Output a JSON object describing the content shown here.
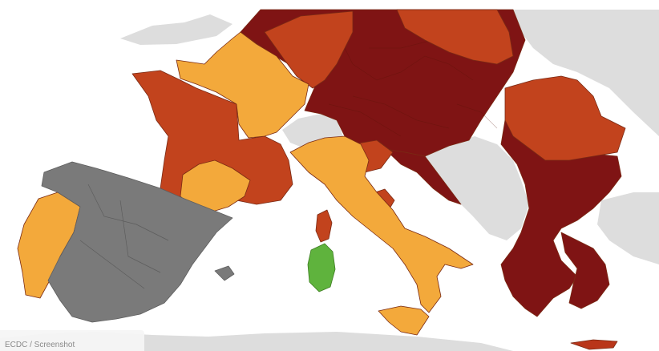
{
  "map": {
    "colors": {
      "sea": "#ffffff",
      "land_outside": "#dddddd",
      "dark_red": "#7f1414",
      "red": "#c2431d",
      "orange": "#f3a93b",
      "green": "#5fb33d",
      "grey": "#7a7a7a"
    },
    "legend_meaning": {
      "dark_red": "dark red",
      "red": "red",
      "orange": "orange",
      "green": "green",
      "grey": "grey (no data)"
    }
  },
  "credit": {
    "text": "ECDC / Screenshot"
  }
}
